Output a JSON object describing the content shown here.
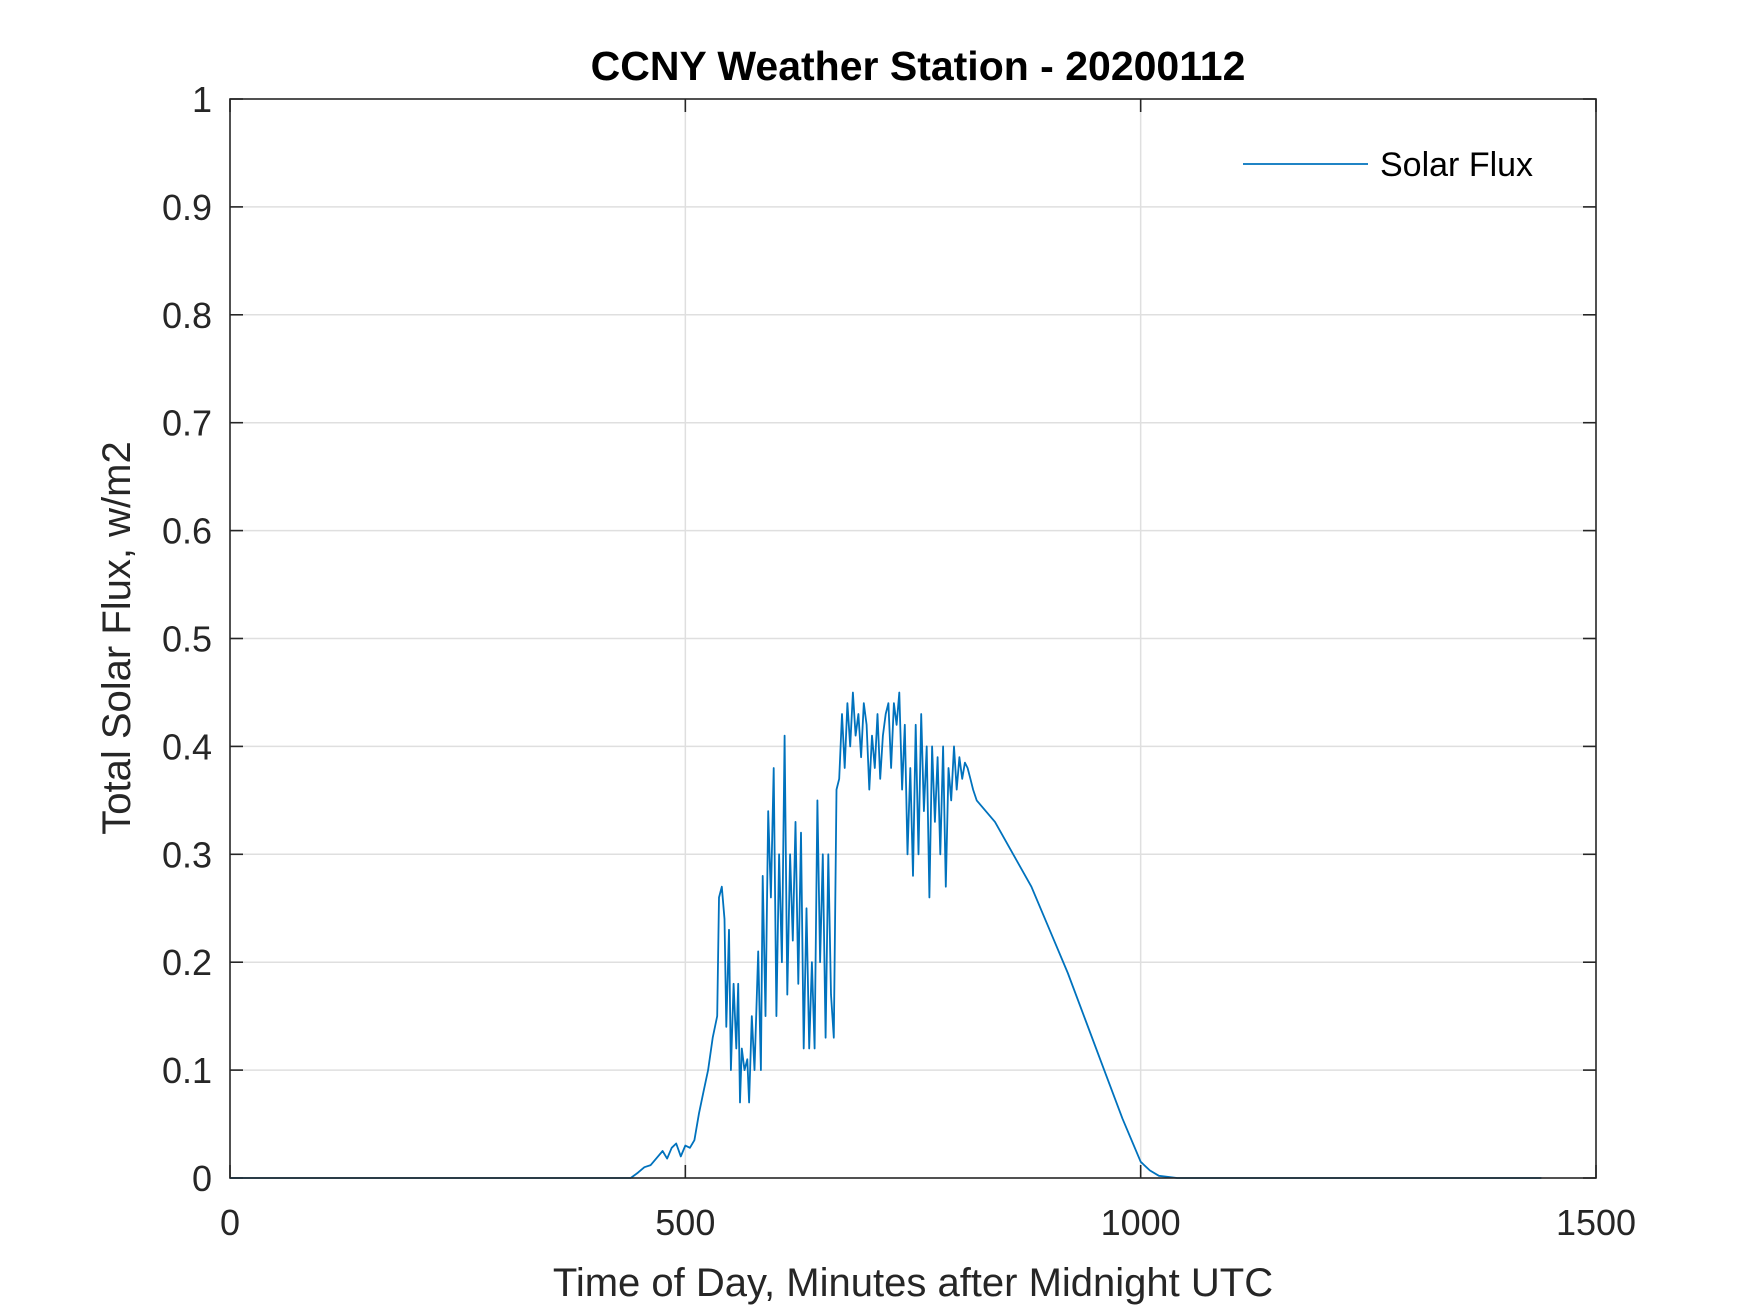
{
  "chart_data": {
    "type": "line",
    "title": "CCNY Weather Station - 20200112",
    "xlabel": "Time of Day, Minutes after Midnight UTC",
    "ylabel": "Total Solar Flux, w/m2",
    "xlim": [
      0,
      1500
    ],
    "ylim": [
      0,
      1
    ],
    "xticks": [
      0,
      500,
      1000,
      1500
    ],
    "xtick_labels": [
      "0",
      "500",
      "1000",
      "1500"
    ],
    "yticks": [
      0,
      0.1,
      0.2,
      0.3,
      0.4,
      0.5,
      0.6,
      0.7,
      0.8,
      0.9,
      1
    ],
    "ytick_labels": [
      "0",
      "0.1",
      "0.2",
      "0.3",
      "0.4",
      "0.5",
      "0.6",
      "0.7",
      "0.8",
      "0.9",
      "1"
    ],
    "grid": true,
    "legend": {
      "position": "top-right"
    },
    "series": [
      {
        "name": "Solar Flux",
        "color": "#0072bd",
        "x": [
          0,
          100,
          200,
          300,
          400,
          440,
          448,
          455,
          462,
          470,
          475,
          480,
          485,
          490,
          495,
          500,
          505,
          510,
          515,
          520,
          525,
          530,
          535,
          537,
          540,
          543,
          545,
          548,
          550,
          553,
          556,
          558,
          560,
          562,
          565,
          568,
          570,
          573,
          576,
          580,
          583,
          585,
          588,
          591,
          594,
          597,
          600,
          603,
          606,
          609,
          612,
          615,
          618,
          621,
          624,
          627,
          630,
          633,
          636,
          639,
          642,
          645,
          648,
          651,
          654,
          657,
          660,
          663,
          666,
          669,
          672,
          675,
          678,
          681,
          684,
          687,
          690,
          693,
          696,
          699,
          702,
          705,
          708,
          711,
          714,
          717,
          720,
          723,
          726,
          729,
          732,
          735,
          738,
          741,
          744,
          747,
          750,
          753,
          756,
          759,
          762,
          765,
          768,
          771,
          774,
          777,
          780,
          783,
          786,
          789,
          792,
          795,
          798,
          801,
          804,
          807,
          810,
          813,
          816,
          820,
          840,
          860,
          880,
          900,
          920,
          940,
          960,
          980,
          1000,
          1010,
          1020,
          1030,
          1040,
          1100,
          1200,
          1300,
          1440
        ],
        "y": [
          0,
          0,
          0,
          0,
          0,
          0,
          0.005,
          0.01,
          0.012,
          0.02,
          0.025,
          0.018,
          0.028,
          0.032,
          0.02,
          0.03,
          0.028,
          0.035,
          0.06,
          0.08,
          0.1,
          0.13,
          0.15,
          0.26,
          0.27,
          0.24,
          0.14,
          0.23,
          0.1,
          0.18,
          0.12,
          0.18,
          0.07,
          0.12,
          0.1,
          0.11,
          0.07,
          0.15,
          0.1,
          0.21,
          0.1,
          0.28,
          0.15,
          0.34,
          0.26,
          0.38,
          0.15,
          0.3,
          0.2,
          0.41,
          0.17,
          0.3,
          0.22,
          0.33,
          0.18,
          0.32,
          0.12,
          0.25,
          0.12,
          0.2,
          0.12,
          0.35,
          0.2,
          0.3,
          0.13,
          0.3,
          0.17,
          0.13,
          0.36,
          0.37,
          0.43,
          0.38,
          0.44,
          0.4,
          0.45,
          0.41,
          0.43,
          0.39,
          0.44,
          0.42,
          0.36,
          0.41,
          0.38,
          0.43,
          0.37,
          0.41,
          0.43,
          0.44,
          0.38,
          0.44,
          0.42,
          0.45,
          0.36,
          0.42,
          0.3,
          0.38,
          0.28,
          0.42,
          0.3,
          0.43,
          0.34,
          0.4,
          0.26,
          0.4,
          0.33,
          0.39,
          0.3,
          0.4,
          0.27,
          0.38,
          0.35,
          0.4,
          0.36,
          0.39,
          0.37,
          0.385,
          0.38,
          0.37,
          0.36,
          0.35,
          0.33,
          0.3,
          0.27,
          0.23,
          0.19,
          0.145,
          0.1,
          0.055,
          0.015,
          0.007,
          0.002,
          0.001,
          0,
          0,
          0,
          0,
          0
        ]
      }
    ]
  }
}
